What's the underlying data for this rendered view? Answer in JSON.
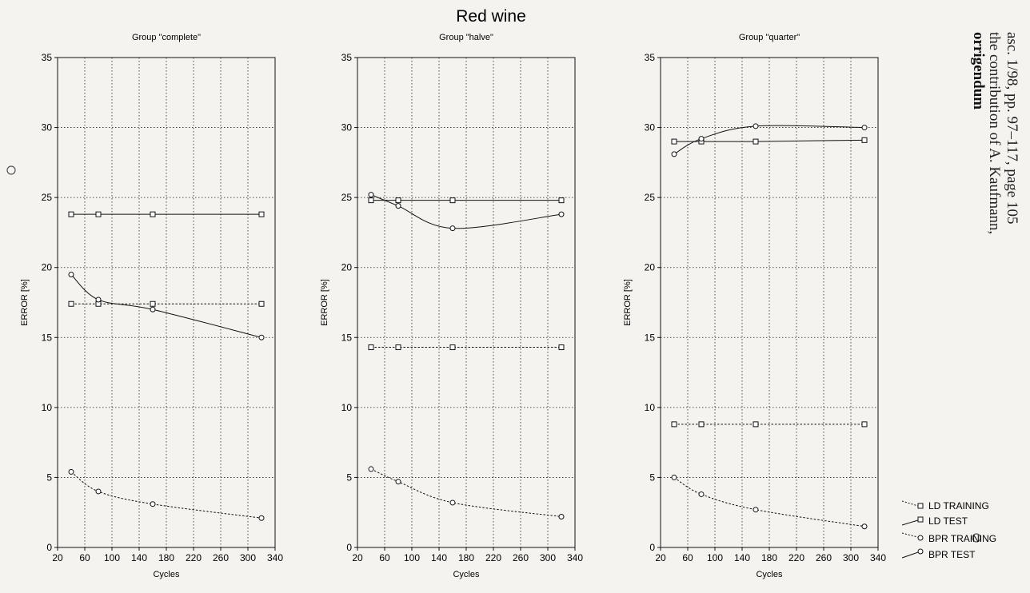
{
  "main_title": "Red wine",
  "side_note": {
    "title": "orrigendum",
    "line1": "the contribution of A. Kaufmann,",
    "line2": "asc. 1/98, pp. 97–117, page 105"
  },
  "legend": {
    "ld_training": "LD TRAINING",
    "ld_test": "LD TEST",
    "bpr_training": "BPR TRAINING",
    "bpr_test": "BPR TEST"
  },
  "chart_data": [
    {
      "type": "line",
      "title": "Group \"complete\"",
      "xlabel": "Cycles",
      "ylabel": "ERROR [%]",
      "xlim": [
        20,
        340
      ],
      "ylim": [
        0,
        35
      ],
      "xticks": [
        20,
        60,
        100,
        140,
        180,
        220,
        260,
        300,
        340
      ],
      "yticks": [
        0,
        5,
        10,
        15,
        20,
        25,
        30,
        35
      ],
      "grid": true,
      "x": [
        40,
        80,
        160,
        320
      ],
      "series": [
        {
          "name": "LD TRAINING",
          "values": [
            17.4,
            17.4,
            17.4,
            17.4
          ]
        },
        {
          "name": "LD TEST",
          "values": [
            23.8,
            23.8,
            23.8,
            23.8
          ]
        },
        {
          "name": "BPR TRAINING",
          "values": [
            5.4,
            4.0,
            3.1,
            2.1
          ]
        },
        {
          "name": "BPR TEST",
          "values": [
            19.5,
            17.7,
            17.0,
            15.0
          ]
        }
      ]
    },
    {
      "type": "line",
      "title": "Group \"halve\"",
      "xlabel": "Cycles",
      "ylabel": "ERROR [%]",
      "xlim": [
        20,
        340
      ],
      "ylim": [
        0,
        35
      ],
      "xticks": [
        20,
        60,
        100,
        140,
        180,
        220,
        260,
        300,
        340
      ],
      "yticks": [
        0,
        5,
        10,
        15,
        20,
        25,
        30,
        35
      ],
      "grid": true,
      "x": [
        40,
        80,
        160,
        320
      ],
      "series": [
        {
          "name": "LD TRAINING",
          "values": [
            14.3,
            14.3,
            14.3,
            14.3
          ]
        },
        {
          "name": "LD TEST",
          "values": [
            24.8,
            24.8,
            24.8,
            24.8
          ]
        },
        {
          "name": "BPR TRAINING",
          "values": [
            5.6,
            4.7,
            3.2,
            2.2
          ]
        },
        {
          "name": "BPR TEST",
          "values": [
            25.2,
            24.4,
            22.8,
            23.8
          ]
        }
      ]
    },
    {
      "type": "line",
      "title": "Group \"quarter\"",
      "xlabel": "Cycles",
      "ylabel": "ERROR [%]",
      "xlim": [
        20,
        340
      ],
      "ylim": [
        0,
        35
      ],
      "xticks": [
        20,
        60,
        100,
        140,
        180,
        220,
        260,
        300,
        340
      ],
      "yticks": [
        0,
        5,
        10,
        15,
        20,
        25,
        30,
        35
      ],
      "grid": true,
      "x": [
        40,
        80,
        160,
        320
      ],
      "series": [
        {
          "name": "LD TRAINING",
          "values": [
            8.8,
            8.8,
            8.8,
            8.8
          ]
        },
        {
          "name": "LD TEST",
          "values": [
            29.0,
            29.0,
            29.0,
            29.1
          ]
        },
        {
          "name": "BPR TRAINING",
          "values": [
            5.0,
            3.8,
            2.7,
            1.5
          ]
        },
        {
          "name": "BPR TEST",
          "values": [
            28.1,
            29.2,
            30.1,
            30.0
          ]
        }
      ]
    }
  ]
}
